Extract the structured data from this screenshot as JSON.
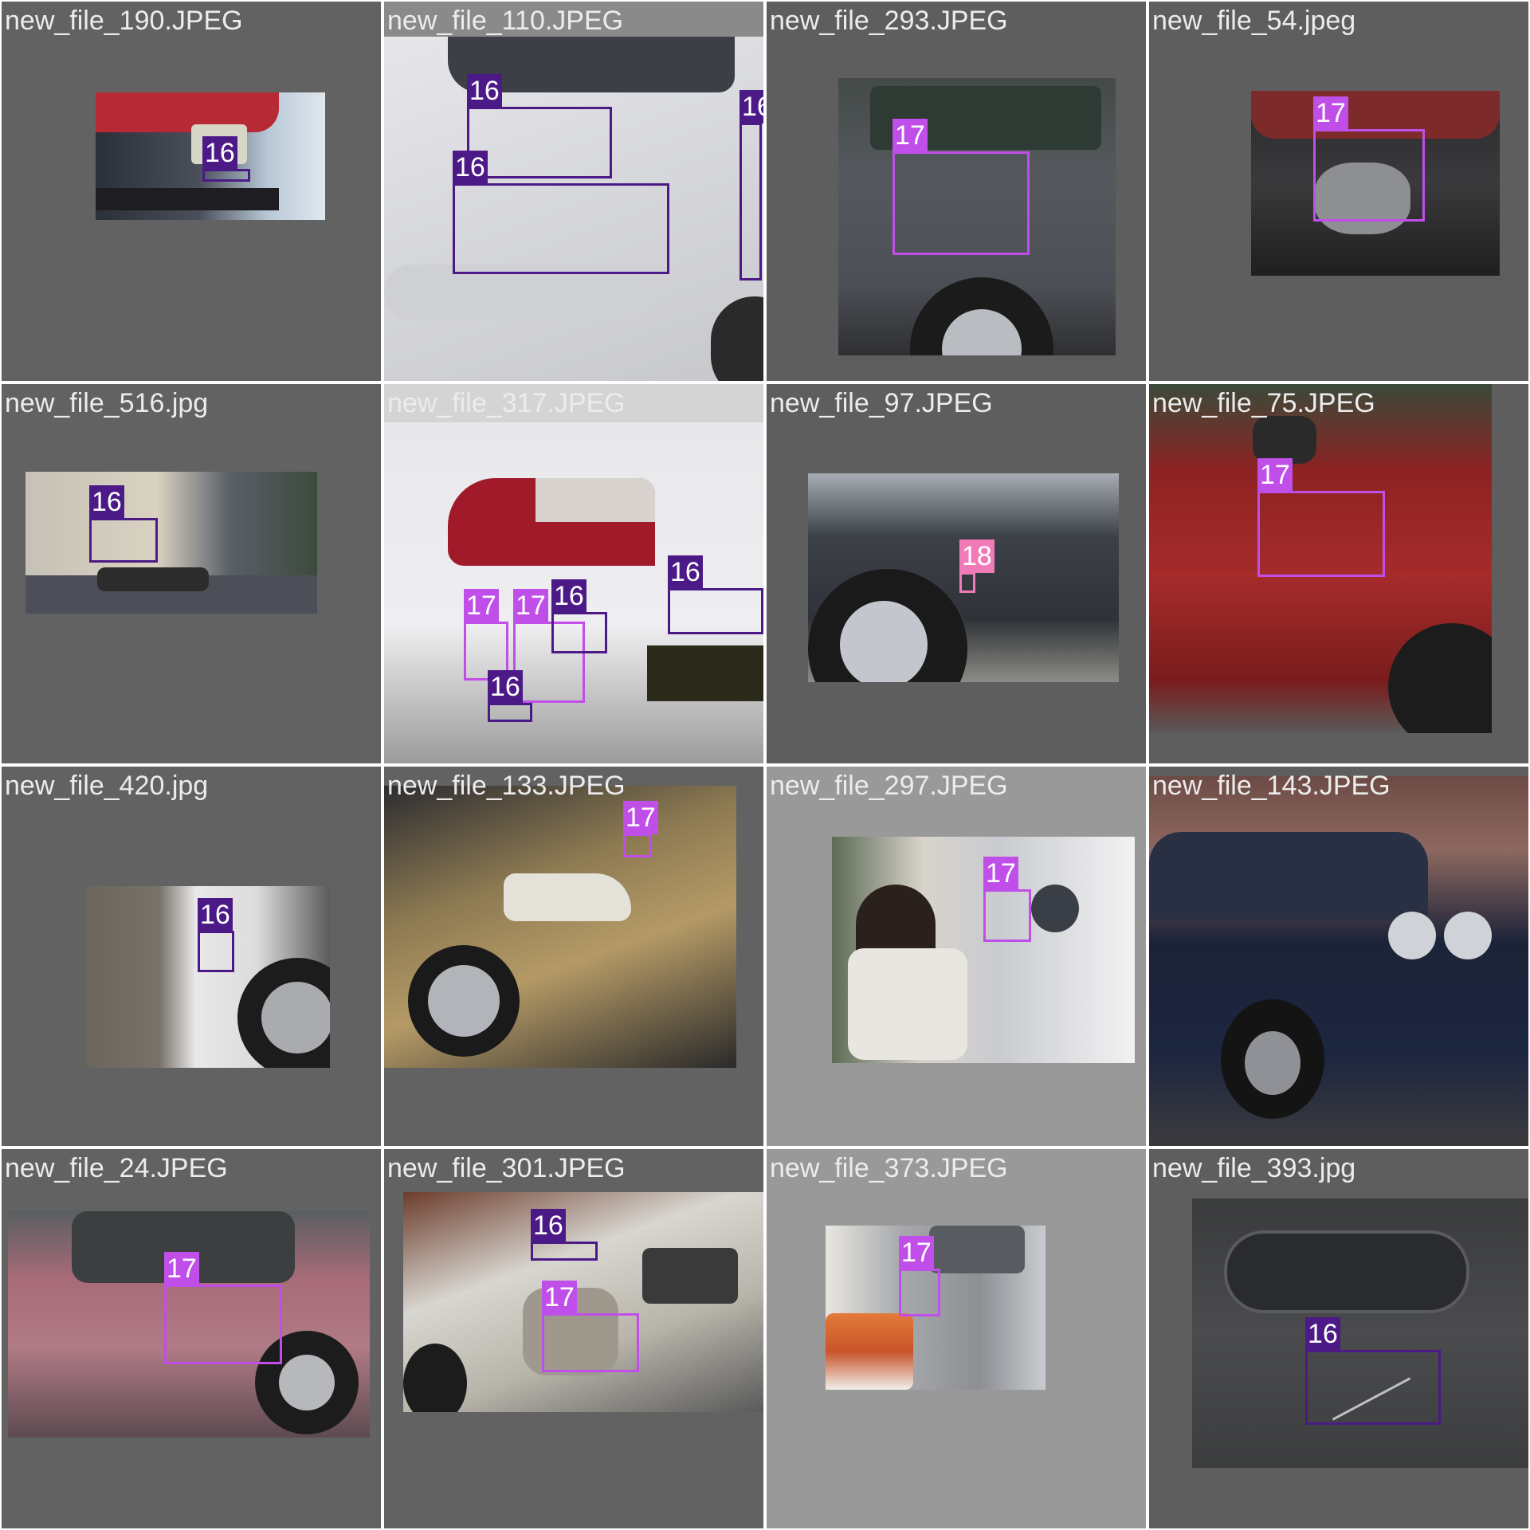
{
  "tiles": [
    {
      "file": "new_file_190.JPEG",
      "labels": [
        "16"
      ]
    },
    {
      "file": "new_file_110.JPEG",
      "labels": [
        "16",
        "16",
        "16"
      ]
    },
    {
      "file": "new_file_293.JPEG",
      "labels": [
        "17"
      ]
    },
    {
      "file": "new_file_54.jpeg",
      "labels": [
        "17"
      ]
    },
    {
      "file": "new_file_516.jpg",
      "labels": [
        "16"
      ]
    },
    {
      "file": "new_file_317.JPEG",
      "labels": [
        "16",
        "17",
        "17",
        "16",
        "16"
      ]
    },
    {
      "file": "new_file_97.JPEG",
      "labels": [
        "18"
      ]
    },
    {
      "file": "new_file_75.JPEG",
      "labels": [
        "17"
      ]
    },
    {
      "file": "new_file_420.jpg",
      "labels": [
        "16"
      ]
    },
    {
      "file": "new_file_133.JPEG",
      "labels": [
        "17"
      ]
    },
    {
      "file": "new_file_297.JPEG",
      "labels": [
        "17"
      ]
    },
    {
      "file": "new_file_143.JPEG",
      "labels": []
    },
    {
      "file": "new_file_24.JPEG",
      "labels": [
        "17"
      ]
    },
    {
      "file": "new_file_301.JPEG",
      "labels": [
        "16",
        "17"
      ]
    },
    {
      "file": "new_file_373.JPEG",
      "labels": [
        "17"
      ]
    },
    {
      "file": "new_file_393.jpg",
      "labels": [
        "16"
      ]
    }
  ],
  "colors": {
    "class_16": "#4b1a86",
    "class_17": "#c04ee8",
    "class_18": "#f07bb8",
    "tile_dark": "#606060",
    "tile_light": "#999999"
  }
}
